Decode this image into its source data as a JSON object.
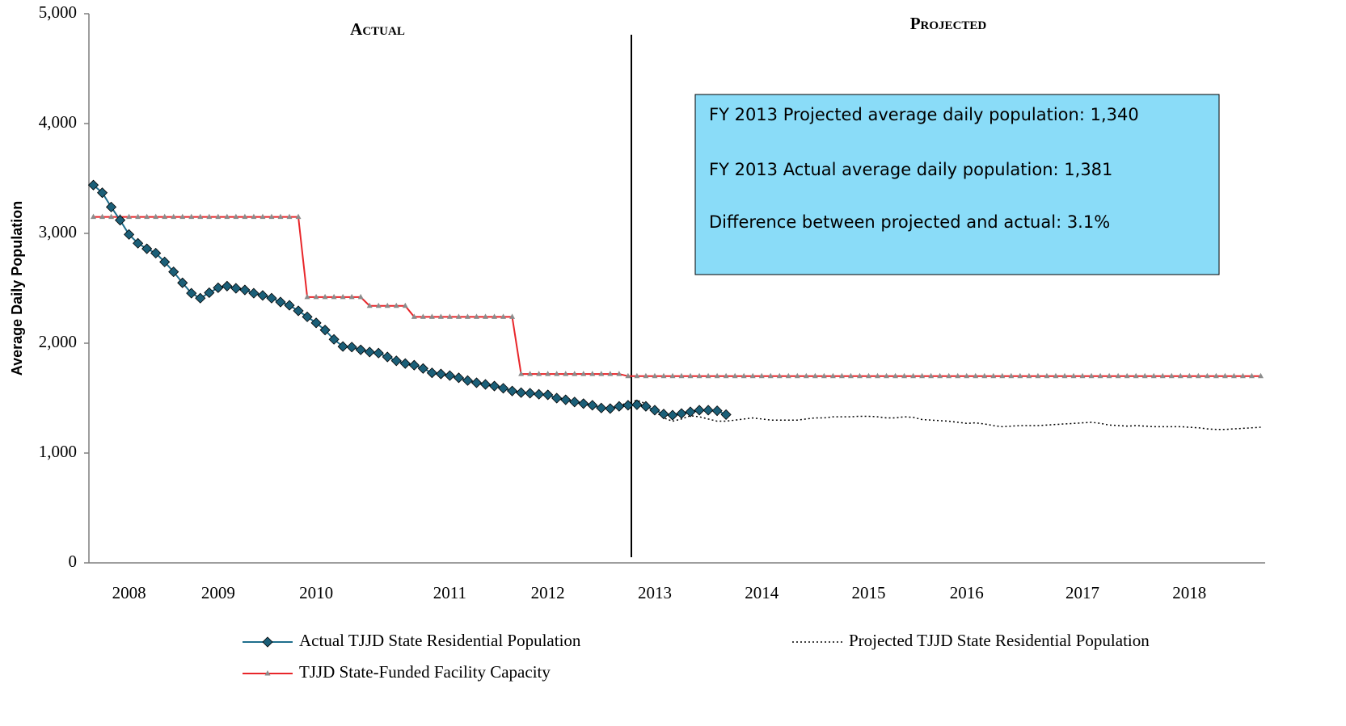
{
  "chart_data": {
    "type": "line",
    "y_axis_label": "Average Daily Population",
    "annotations": {
      "left_section": "Actual",
      "right_section": "Projected",
      "box": [
        "FY 2013 Projected average daily population:  1,340",
        "FY 2013 Actual average daily population:  1,381",
        "Difference between projected and actual:  3.1%"
      ],
      "box_color": "#8adcf8"
    },
    "ylim": [
      0,
      5000
    ],
    "yticks": [
      0,
      {
        "value": 1000,
        "label": "1,000"
      },
      {
        "value": 2000,
        "label": "2,000"
      },
      {
        "value": 3000,
        "label": "3,000"
      },
      {
        "value": 4000,
        "label": "4,000"
      },
      {
        "value": 5000,
        "label": "5,000"
      }
    ],
    "grid": false,
    "legend": "bottom",
    "categories": [
      null,
      null,
      null,
      null,
      "2008",
      null,
      null,
      null,
      null,
      null,
      null,
      null,
      null,
      null,
      "2009",
      null,
      null,
      null,
      null,
      null,
      null,
      null,
      null,
      null,
      null,
      "2010",
      null,
      null,
      null,
      null,
      null,
      null,
      null,
      null,
      null,
      null,
      null,
      null,
      null,
      null,
      "2011",
      null,
      null,
      null,
      null,
      null,
      null,
      null,
      null,
      null,
      null,
      "2012",
      null,
      null,
      null,
      null,
      null,
      null,
      null,
      null,
      null,
      null,
      null,
      "2013",
      null,
      null,
      null,
      null,
      null,
      null,
      null,
      null,
      null,
      null,
      null,
      "2014",
      null,
      null,
      null,
      null,
      null,
      null,
      null,
      null,
      null,
      null,
      null,
      "2015",
      null,
      null,
      null,
      null,
      null,
      null,
      null,
      null,
      null,
      null,
      "2016",
      null,
      null,
      null,
      null,
      null,
      null,
      null,
      null,
      null,
      null,
      null,
      null,
      "2017",
      null,
      null,
      null,
      null,
      null,
      null,
      null,
      null,
      null,
      null,
      null,
      "2018",
      null,
      null,
      null,
      null,
      null,
      null,
      null,
      null
    ],
    "series": [
      {
        "name": "Actual TJJD State Residential Population",
        "color": "#1f6e8c",
        "marker": "diamond",
        "marker_color": "#1b5f78",
        "values": [
          3440,
          3370,
          3240,
          3120,
          2990,
          2910,
          2860,
          2820,
          2740,
          2650,
          2550,
          2455,
          2410,
          2460,
          2505,
          2520,
          2500,
          2485,
          2455,
          2435,
          2410,
          2375,
          2345,
          2295,
          2240,
          2185,
          2120,
          2035,
          1970,
          1965,
          1940,
          1920,
          1910,
          1875,
          1840,
          1815,
          1800,
          1770,
          1730,
          1720,
          1705,
          1685,
          1660,
          1640,
          1625,
          1610,
          1590,
          1565,
          1550,
          1545,
          1535,
          1530,
          1500,
          1485,
          1465,
          1450,
          1435,
          1410,
          1405,
          1425,
          1435,
          1440,
          1425,
          1390,
          1355,
          1345,
          1360,
          1375,
          1390,
          1390,
          1385,
          1350,
          null,
          null,
          null,
          null,
          null,
          null,
          null,
          null,
          null,
          null,
          null,
          null,
          null,
          null,
          null,
          null,
          null,
          null,
          null,
          null,
          null,
          null,
          null,
          null,
          null,
          null,
          null,
          null,
          null,
          null,
          null,
          null,
          null,
          null,
          null,
          null,
          null,
          null,
          null,
          null,
          null,
          null,
          null,
          null,
          null,
          null,
          null,
          null,
          null,
          null,
          null,
          null,
          null,
          null,
          null,
          null,
          null,
          null,
          null,
          null
        ]
      },
      {
        "name": "Projected TJJD State Residential Population",
        "color": "#000000",
        "dash": "dotted",
        "values": [
          null,
          null,
          null,
          null,
          null,
          null,
          null,
          null,
          null,
          null,
          null,
          null,
          null,
          null,
          null,
          null,
          null,
          null,
          null,
          null,
          null,
          null,
          null,
          null,
          null,
          null,
          null,
          null,
          null,
          null,
          null,
          null,
          null,
          null,
          null,
          null,
          null,
          null,
          null,
          null,
          null,
          null,
          null,
          null,
          null,
          null,
          null,
          null,
          null,
          null,
          null,
          null,
          null,
          null,
          null,
          null,
          null,
          null,
          null,
          1430,
          1460,
          1480,
          1450,
          1380,
          1320,
          1290,
          1310,
          1340,
          1330,
          1310,
          1290,
          1290,
          1300,
          1310,
          1320,
          1310,
          1300,
          1300,
          1300,
          1300,
          1310,
          1320,
          1320,
          1330,
          1330,
          1330,
          1335,
          1335,
          1330,
          1320,
          1320,
          1330,
          1325,
          1305,
          1300,
          1295,
          1290,
          1280,
          1270,
          1275,
          1265,
          1250,
          1240,
          1245,
          1250,
          1250,
          1250,
          1255,
          1260,
          1265,
          1270,
          1275,
          1280,
          1270,
          1255,
          1250,
          1245,
          1250,
          1245,
          1240,
          1240,
          1240,
          1240,
          1235,
          1230,
          1220,
          1215,
          1215,
          1220,
          1225,
          1230,
          1235
        ]
      },
      {
        "name": "TJJD State-Funded Facility Capacity",
        "color": "#e8262a",
        "marker": "triangle",
        "marker_color": "#8c8c8c",
        "values": [
          3150,
          3150,
          3150,
          3150,
          3150,
          3150,
          3150,
          3150,
          3150,
          3150,
          3150,
          3150,
          3150,
          3150,
          3150,
          3150,
          3150,
          3150,
          3150,
          3150,
          3150,
          3150,
          3150,
          3150,
          2420,
          2420,
          2420,
          2420,
          2420,
          2420,
          2420,
          2340,
          2340,
          2340,
          2340,
          2340,
          2240,
          2240,
          2240,
          2240,
          2240,
          2240,
          2240,
          2240,
          2240,
          2240,
          2240,
          2240,
          1720,
          1720,
          1720,
          1720,
          1720,
          1720,
          1720,
          1720,
          1720,
          1720,
          1720,
          1720,
          1700,
          1700,
          1700,
          1700,
          1700,
          1700,
          1700,
          1700,
          1700,
          1700,
          1700,
          1700,
          1700,
          1700,
          1700,
          1700,
          1700,
          1700,
          1700,
          1700,
          1700,
          1700,
          1700,
          1700,
          1700,
          1700,
          1700,
          1700,
          1700,
          1700,
          1700,
          1700,
          1700,
          1700,
          1700,
          1700,
          1700,
          1700,
          1700,
          1700,
          1700,
          1700,
          1700,
          1700,
          1700,
          1700,
          1700,
          1700,
          1700,
          1700,
          1700,
          1700,
          1700,
          1700,
          1700,
          1700,
          1700,
          1700,
          1700,
          1700,
          1700,
          1700,
          1700,
          1700,
          1700,
          1700,
          1700,
          1700,
          1700,
          1700,
          1700,
          1700
        ]
      }
    ]
  }
}
